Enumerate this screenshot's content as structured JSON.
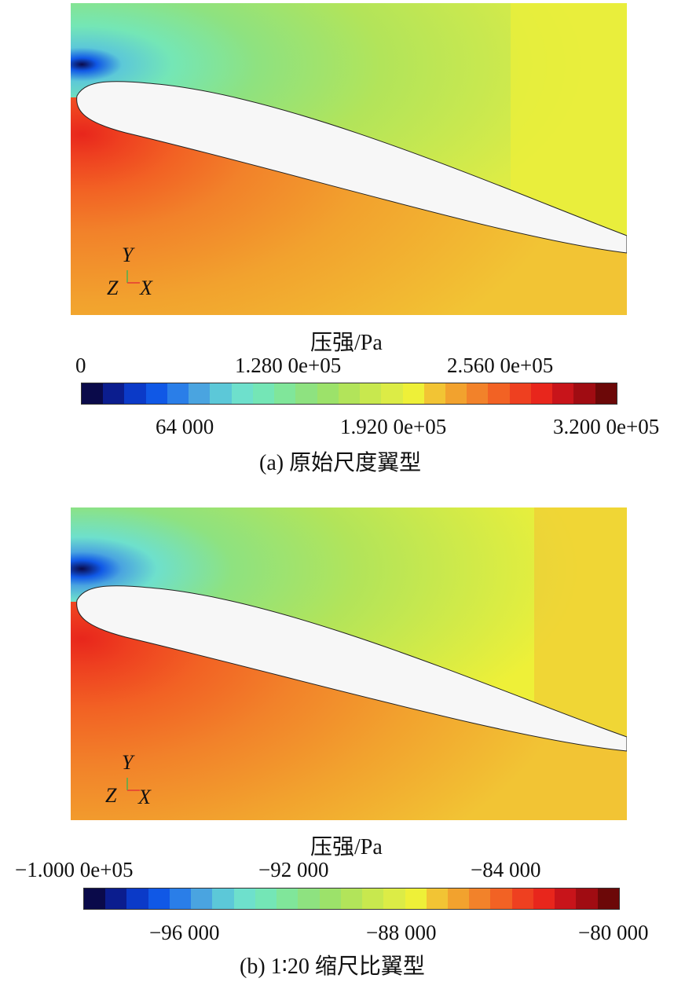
{
  "panels": [
    {
      "caption": "(a) 原始尺度翼型",
      "colorbar": {
        "title": "压强/Pa",
        "labels_top": [
          "0",
          "1.280 0e+05",
          "2.560 0e+05"
        ],
        "labels_bottom": [
          "64 000",
          "1.920 0e+05",
          "3.200 0e+05"
        ]
      },
      "axes": {
        "y": "Y",
        "z": "Z",
        "x": "X"
      }
    },
    {
      "caption": "(b) 1∶20 缩尺比翼型",
      "colorbar": {
        "title": "压强/Pa",
        "labels_top": [
          "−1.000 0e+05",
          "−92 000",
          "−84 000"
        ],
        "labels_bottom": [
          "−96 000",
          "−88 000",
          "−80 000"
        ]
      },
      "axes": {
        "y": "Y",
        "z": "Z",
        "x": "X"
      }
    }
  ],
  "colormap": [
    "#0a0a4a",
    "#0b1d8e",
    "#0b3ac8",
    "#1058e6",
    "#2a7ee8",
    "#4aa4e0",
    "#5cc8d8",
    "#6ee0cc",
    "#74e6b6",
    "#80e69a",
    "#8ee280",
    "#9ce26a",
    "#b2e45a",
    "#c8e84e",
    "#dcec46",
    "#eef038",
    "#f2c434",
    "#f2a22e",
    "#f2822a",
    "#f26224",
    "#ee4020",
    "#e8261c",
    "#c8141a",
    "#a00c12",
    "#6c0808"
  ]
}
